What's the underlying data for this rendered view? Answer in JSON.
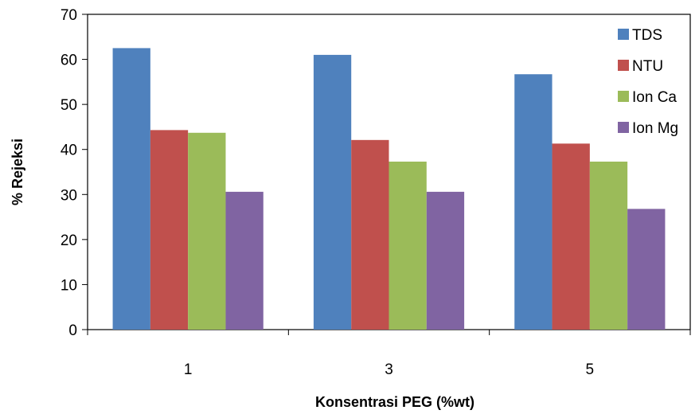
{
  "chart_data": {
    "type": "bar",
    "title": "",
    "xlabel": "Konsentrasi PEG (%wt)",
    "ylabel": "% Rejeksi",
    "categories": [
      "1",
      "3",
      "5"
    ],
    "ylim": [
      0,
      70
    ],
    "yticks": [
      0,
      10,
      20,
      30,
      40,
      50,
      60,
      70
    ],
    "grid": false,
    "legend_position": "top-right",
    "series": [
      {
        "name": "TDS",
        "color": "#4F81BD",
        "values": [
          62.5,
          61.0,
          56.7
        ]
      },
      {
        "name": "NTU",
        "color": "#C0504D",
        "values": [
          44.3,
          42.1,
          41.3
        ]
      },
      {
        "name": "Ion Ca",
        "color": "#9BBB59",
        "values": [
          43.7,
          37.3,
          37.3
        ]
      },
      {
        "name": "Ion Mg",
        "color": "#8064A2",
        "values": [
          30.6,
          30.6,
          26.8
        ]
      }
    ]
  }
}
